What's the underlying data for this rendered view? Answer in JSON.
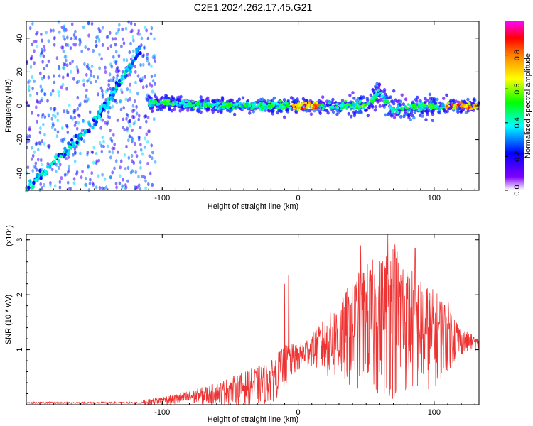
{
  "figure_title": "C2E1.2024.262.17.45.G21",
  "chart_data": [
    {
      "type": "heatmap",
      "title": "C2E1.2024.262.17.45.G21",
      "xlabel": "Height of straight line (km)",
      "ylabel": "Frequency (Hz)",
      "xlim": [
        -200,
        133
      ],
      "ylim": [
        -50,
        50
      ],
      "x_ticks": [
        -100,
        0,
        100
      ],
      "y_ticks": [
        -40,
        -20,
        0,
        20,
        40
      ],
      "colorbar": {
        "label": "Normalized spectral amplitude",
        "range": [
          0,
          1
        ],
        "ticks": [
          0.0,
          0.2,
          0.4,
          0.6,
          0.8
        ],
        "colors": [
          "#ffffff",
          "#8000ff",
          "#0000ff",
          "#00ffff",
          "#00ff00",
          "#ffff00",
          "#ff8000",
          "#ff0000",
          "#ff00ff"
        ]
      },
      "features": [
        {
          "name": "diagonal_track",
          "x": [
            -200,
            -175,
            -150,
            -130,
            -115
          ],
          "y": [
            -50,
            -30,
            -10,
            15,
            35
          ]
        },
        {
          "name": "center_band",
          "x": [
            -110,
            -50,
            0,
            50,
            60,
            70,
            100,
            133
          ],
          "y": [
            2,
            0,
            0,
            0,
            8,
            -2,
            0,
            0
          ]
        }
      ]
    },
    {
      "type": "line",
      "xlabel": "Height of straight line (km)",
      "ylabel": "SNR (10 * v/v)",
      "y_multiplier": "(x10⁴)",
      "xlim": [
        -200,
        133
      ],
      "ylim": [
        0,
        3.1
      ],
      "x_ticks": [
        -100,
        0,
        100
      ],
      "y_ticks": [
        1,
        2,
        3
      ],
      "color": "#ee3333",
      "envelope": {
        "x": [
          -200,
          -120,
          -100,
          -80,
          -60,
          -40,
          -20,
          -10,
          0,
          10,
          20,
          30,
          40,
          50,
          60,
          70,
          80,
          90,
          100,
          110,
          120,
          133
        ],
        "lower": [
          0.0,
          0.0,
          0.0,
          0.0,
          0.0,
          0.0,
          0.0,
          0.3,
          0.6,
          0.7,
          0.5,
          0.4,
          0.3,
          0.2,
          0.1,
          0.1,
          0.2,
          0.2,
          0.3,
          0.6,
          0.9,
          1.0
        ],
        "upper": [
          0.05,
          0.05,
          0.15,
          0.25,
          0.4,
          0.6,
          0.8,
          1.1,
          1.1,
          1.3,
          1.6,
          1.9,
          2.3,
          2.6,
          2.7,
          3.1,
          2.6,
          2.3,
          2.1,
          1.9,
          1.4,
          1.2
        ]
      },
      "spikes": [
        {
          "x": -10,
          "y": 2.2
        },
        {
          "x": -7,
          "y": 2.35
        },
        {
          "x": 46,
          "y": 2.9
        },
        {
          "x": 66,
          "y": 3.1
        },
        {
          "x": 86,
          "y": 2.85
        }
      ]
    }
  ]
}
